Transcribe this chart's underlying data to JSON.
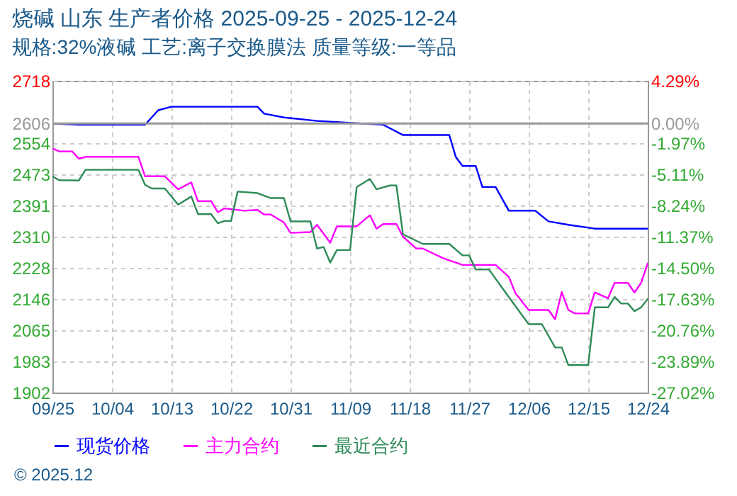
{
  "chart_data": {
    "type": "line",
    "title": "烧碱 山东 生产者价格 2025-09-25 - 2025-12-24",
    "subtitle": "规格:32%液碱 工艺:离子交换膜法 质量等级:一等品",
    "annotations": [
      "© 2025.12"
    ],
    "xlim": [
      "2025-09-25",
      "2025-12-24"
    ],
    "xticks": [
      {
        "value": "2025-09-25",
        "label": "09/25"
      },
      {
        "value": "2025-10-04",
        "label": "10/04"
      },
      {
        "value": "2025-10-13",
        "label": "10/13"
      },
      {
        "value": "2025-10-22",
        "label": "10/22"
      },
      {
        "value": "2025-10-31",
        "label": "10/31"
      },
      {
        "value": "2025-11-09",
        "label": "11/09"
      },
      {
        "value": "2025-11-18",
        "label": "11/18"
      },
      {
        "value": "2025-11-27",
        "label": "11/27"
      },
      {
        "value": "2025-12-06",
        "label": "12/06"
      },
      {
        "value": "2025-12-15",
        "label": "12/15"
      },
      {
        "value": "2025-12-24",
        "label": "12/24"
      }
    ],
    "ylim": [
      1902,
      2718
    ],
    "yticks": [
      1902,
      1983,
      2065,
      2146,
      2228,
      2310,
      2391,
      2473,
      2554,
      2606,
      2718
    ],
    "y2lim": [
      -27.02,
      4.29
    ],
    "y2ticks": [
      {
        "value": -27.02,
        "label": "-27.02%"
      },
      {
        "value": -23.89,
        "label": "-23.89%"
      },
      {
        "value": -20.76,
        "label": "-20.76%"
      },
      {
        "value": -17.63,
        "label": "-17.63%"
      },
      {
        "value": -14.5,
        "label": "-14.50%"
      },
      {
        "value": -11.37,
        "label": "-11.37%"
      },
      {
        "value": -8.24,
        "label": "-8.24%"
      },
      {
        "value": -5.11,
        "label": "-5.11%"
      },
      {
        "value": -1.97,
        "label": "-1.97%"
      },
      {
        "value": 0,
        "label": "0.00%"
      },
      {
        "value": 4.29,
        "label": "4.29%"
      }
    ],
    "ref_lines": [
      {
        "axis": "y2",
        "value": 0,
        "color": "#999999"
      }
    ],
    "grid": true,
    "legend": "bottom",
    "marker": "none",
    "line_style": "solid",
    "series": [
      {
        "name": "现货价格",
        "color": "#0000ff",
        "x": [
          "2025-09-25",
          "2025-09-29",
          "2025-10-09",
          "2025-10-11",
          "2025-10-13",
          "2025-10-26",
          "2025-10-27",
          "2025-10-30",
          "2025-11-04",
          "2025-11-14",
          "2025-11-17",
          "2025-11-24",
          "2025-11-25",
          "2025-11-26",
          "2025-11-28",
          "2025-11-29",
          "2025-12-01",
          "2025-12-03",
          "2025-12-07",
          "2025-12-09",
          "2025-12-12",
          "2025-12-16",
          "2025-12-24"
        ],
        "values": [
          2606,
          2603,
          2603,
          2641,
          2650,
          2650,
          2632,
          2622,
          2613,
          2603,
          2576,
          2576,
          2518,
          2495,
          2495,
          2440,
          2440,
          2378,
          2378,
          2350,
          2341,
          2331,
          2331
        ]
      },
      {
        "name": "主力合约",
        "color": "#ff00ff",
        "x": [
          "2025-09-25",
          "2025-09-26",
          "2025-09-28",
          "2025-09-29",
          "2025-09-30",
          "2025-10-08",
          "2025-10-09",
          "2025-10-12",
          "2025-10-14",
          "2025-10-16",
          "2025-10-17",
          "2025-10-19",
          "2025-10-20",
          "2025-10-21",
          "2025-10-24",
          "2025-10-26",
          "2025-10-27",
          "2025-10-28",
          "2025-10-30",
          "2025-10-31",
          "2025-11-03",
          "2025-11-04",
          "2025-11-06",
          "2025-11-07",
          "2025-11-10",
          "2025-11-12",
          "2025-11-13",
          "2025-11-14",
          "2025-11-16",
          "2025-11-17",
          "2025-11-19",
          "2025-11-20",
          "2025-11-23",
          "2025-11-26",
          "2025-12-01",
          "2025-12-03",
          "2025-12-04",
          "2025-12-06",
          "2025-12-09",
          "2025-12-10",
          "2025-12-11",
          "2025-12-12",
          "2025-12-13",
          "2025-12-15",
          "2025-12-16",
          "2025-12-18",
          "2025-12-19",
          "2025-12-21",
          "2025-12-22",
          "2025-12-23",
          "2025-12-24"
        ],
        "values": [
          2541,
          2533,
          2533,
          2514,
          2519,
          2519,
          2468,
          2468,
          2434,
          2452,
          2403,
          2403,
          2374,
          2384,
          2378,
          2380,
          2368,
          2368,
          2347,
          2320,
          2322,
          2341,
          2294,
          2337,
          2337,
          2366,
          2331,
          2343,
          2343,
          2310,
          2279,
          2279,
          2254,
          2236,
          2236,
          2205,
          2162,
          2118,
          2118,
          2094,
          2165,
          2118,
          2109,
          2109,
          2164,
          2149,
          2189,
          2189,
          2164,
          2189,
          2240
        ]
      },
      {
        "name": "最近合约",
        "color": "#2e8b57",
        "x": [
          "2025-09-25",
          "2025-09-26",
          "2025-09-29",
          "2025-09-30",
          "2025-10-08",
          "2025-10-09",
          "2025-10-10",
          "2025-10-12",
          "2025-10-14",
          "2025-10-16",
          "2025-10-17",
          "2025-10-19",
          "2025-10-20",
          "2025-10-21",
          "2025-10-22",
          "2025-10-23",
          "2025-10-26",
          "2025-10-28",
          "2025-10-30",
          "2025-10-31",
          "2025-11-03",
          "2025-11-04",
          "2025-11-05",
          "2025-11-06",
          "2025-11-07",
          "2025-11-09",
          "2025-11-10",
          "2025-11-12",
          "2025-11-13",
          "2025-11-15",
          "2025-11-16",
          "2025-11-17",
          "2025-11-20",
          "2025-11-24",
          "2025-11-26",
          "2025-11-27",
          "2025-11-28",
          "2025-11-30",
          "2025-12-03",
          "2025-12-06",
          "2025-12-08",
          "2025-12-10",
          "2025-12-11",
          "2025-12-12",
          "2025-12-15",
          "2025-12-16",
          "2025-12-18",
          "2025-12-19",
          "2025-12-20",
          "2025-12-21",
          "2025-12-22",
          "2025-12-23",
          "2025-12-24"
        ],
        "values": [
          2468,
          2458,
          2457,
          2485,
          2485,
          2446,
          2436,
          2436,
          2394,
          2415,
          2369,
          2369,
          2345,
          2351,
          2351,
          2428,
          2424,
          2411,
          2411,
          2350,
          2350,
          2279,
          2283,
          2242,
          2275,
          2275,
          2440,
          2461,
          2434,
          2444,
          2444,
          2316,
          2291,
          2291,
          2261,
          2261,
          2224,
          2224,
          2152,
          2081,
          2081,
          2020,
          2020,
          1974,
          1974,
          2125,
          2125,
          2152,
          2135,
          2135,
          2115,
          2125,
          2147
        ]
      }
    ]
  }
}
